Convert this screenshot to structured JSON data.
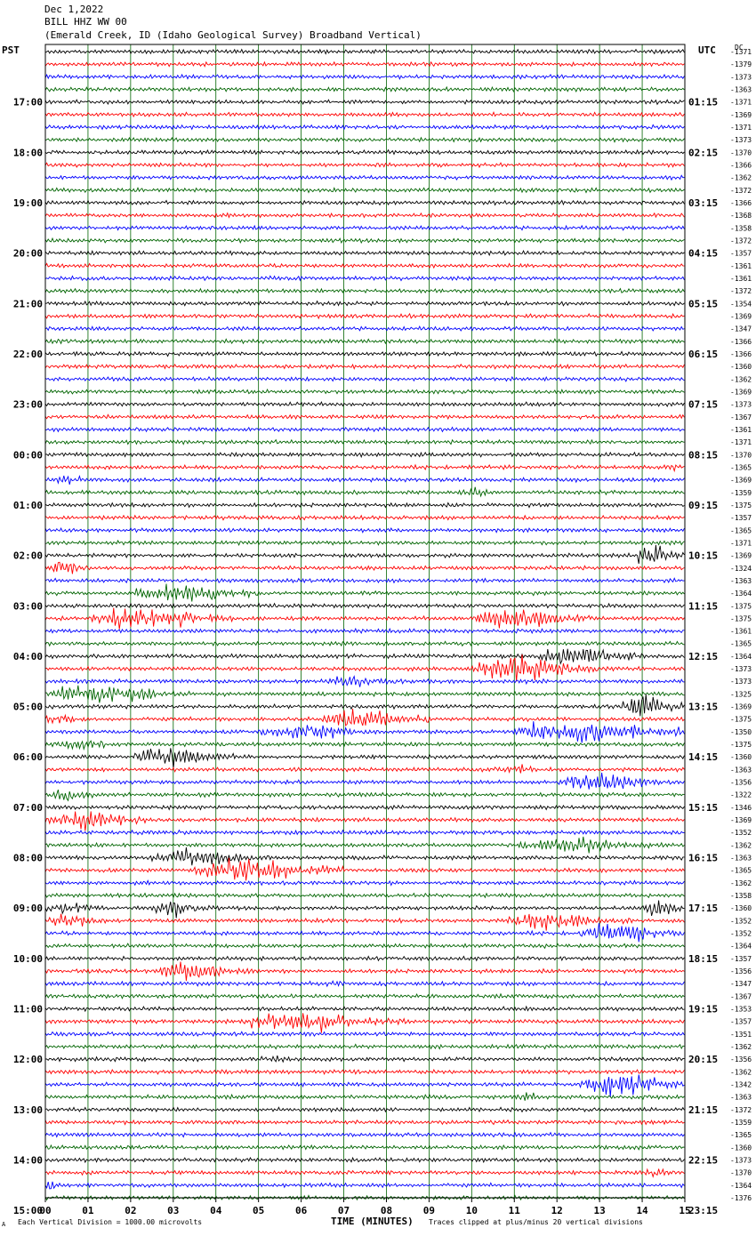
{
  "header": {
    "line1": "Dec 1,2022",
    "line2": "BILL HHZ WW 00",
    "line3": "(Emerald Creek, ID (Idaho Geological Survey) Broadband Vertical)"
  },
  "corners": {
    "left": "PST",
    "right": "UTC",
    "dc": "DC"
  },
  "footer": {
    "left": "Each Vertical Division = 1000.00 microvolts",
    "center": "TIME (MINUTES)",
    "right": "Traces clipped at plus/minus 20 vertical divisions",
    "scale_mark": "A"
  },
  "colors": {
    "trace_cycle": [
      "#000000",
      "#ff0000",
      "#0000ff",
      "#006400"
    ],
    "grid": "#006400"
  },
  "chart_data": {
    "type": "line",
    "title": "BILL HHZ WW 00",
    "xlabel": "TIME (MINUTES)",
    "xlim": [
      0,
      15
    ],
    "x_ticks": [
      "00",
      "01",
      "02",
      "03",
      "04",
      "05",
      "06",
      "07",
      "08",
      "09",
      "10",
      "11",
      "12",
      "13",
      "14",
      "15"
    ],
    "left_time_labels": [
      {
        "row": 4,
        "label": "17:00"
      },
      {
        "row": 8,
        "label": "18:00"
      },
      {
        "row": 12,
        "label": "19:00"
      },
      {
        "row": 16,
        "label": "20:00"
      },
      {
        "row": 20,
        "label": "21:00"
      },
      {
        "row": 24,
        "label": "22:00"
      },
      {
        "row": 28,
        "label": "23:00"
      },
      {
        "row": 32,
        "label": "00:00"
      },
      {
        "row": 36,
        "label": "01:00"
      },
      {
        "row": 40,
        "label": "02:00"
      },
      {
        "row": 44,
        "label": "03:00"
      },
      {
        "row": 48,
        "label": "04:00"
      },
      {
        "row": 52,
        "label": "05:00"
      },
      {
        "row": 56,
        "label": "06:00"
      },
      {
        "row": 60,
        "label": "07:00"
      },
      {
        "row": 64,
        "label": "08:00"
      },
      {
        "row": 68,
        "label": "09:00"
      },
      {
        "row": 72,
        "label": "10:00"
      },
      {
        "row": 76,
        "label": "11:00"
      },
      {
        "row": 80,
        "label": "12:00"
      },
      {
        "row": 84,
        "label": "13:00"
      },
      {
        "row": 88,
        "label": "14:00"
      },
      {
        "row": 92,
        "label": "15:00"
      }
    ],
    "right_time_labels": [
      {
        "row": 4,
        "label": "01:15"
      },
      {
        "row": 8,
        "label": "02:15"
      },
      {
        "row": 12,
        "label": "03:15"
      },
      {
        "row": 16,
        "label": "04:15"
      },
      {
        "row": 20,
        "label": "05:15"
      },
      {
        "row": 24,
        "label": "06:15"
      },
      {
        "row": 28,
        "label": "07:15"
      },
      {
        "row": 32,
        "label": "08:15"
      },
      {
        "row": 36,
        "label": "09:15"
      },
      {
        "row": 40,
        "label": "10:15"
      },
      {
        "row": 44,
        "label": "11:15"
      },
      {
        "row": 48,
        "label": "12:15"
      },
      {
        "row": 52,
        "label": "13:15"
      },
      {
        "row": 56,
        "label": "14:15"
      },
      {
        "row": 60,
        "label": "15:15"
      },
      {
        "row": 64,
        "label": "16:15"
      },
      {
        "row": 68,
        "label": "17:15"
      },
      {
        "row": 72,
        "label": "18:15"
      },
      {
        "row": 76,
        "label": "19:15"
      },
      {
        "row": 80,
        "label": "20:15"
      },
      {
        "row": 84,
        "label": "21:15"
      },
      {
        "row": 88,
        "label": "22:15"
      },
      {
        "row": 92,
        "label": "23:15"
      }
    ],
    "trace_dc_offsets": [
      "-1371",
      "-1379",
      "-1373",
      "-1363",
      "-1371",
      "-1369",
      "-1371",
      "-1373",
      "-1370",
      "-1366",
      "-1362",
      "-1372",
      "-1366",
      "-1368",
      "-1358",
      "-1372",
      "-1357",
      "-1361",
      "-1361",
      "-1372",
      "-1354",
      "-1369",
      "-1347",
      "-1366",
      "-1366",
      "-1360",
      "-1362",
      "-1369",
      "-1373",
      "-1367",
      "-1361",
      "-1371",
      "-1370",
      "-1365",
      "-1369",
      "-1359",
      "-1375",
      "-1357",
      "-1365",
      "-1371",
      "-1369",
      "-1324",
      "-1363",
      "-1364",
      "-1375",
      "-1375",
      "-1361",
      "-1365",
      "-1364",
      "-1373",
      "-1373",
      "-1325",
      "-1369",
      "-1375",
      "-1350",
      "-1375",
      "-1360",
      "-1363",
      "-1356",
      "-1322",
      "-1346",
      "-1369",
      "-1352",
      "-1362",
      "-1363",
      "-1365",
      "-1362",
      "-1358",
      "-1360",
      "-1352",
      "-1352",
      "-1364",
      "-1357",
      "-1356",
      "-1347",
      "-1367",
      "-1353",
      "-1357",
      "-1351",
      "-1362",
      "-1356",
      "-1362",
      "-1342",
      "-1363",
      "-1372",
      "-1359",
      "-1365",
      "-1360",
      "-1373",
      "-1370",
      "-1364",
      "-1376"
    ],
    "events": [
      {
        "row": 34,
        "start_min": 0.0,
        "end_min": 1.5,
        "amplitude": 6
      },
      {
        "row": 33,
        "start_min": 14.5,
        "end_min": 15.0,
        "amplitude": 7
      },
      {
        "row": 35,
        "start_min": 9.5,
        "end_min": 11.0,
        "amplitude": 6
      },
      {
        "row": 40,
        "start_min": 13.8,
        "end_min": 15.0,
        "amplitude": 14
      },
      {
        "row": 41,
        "start_min": 0.0,
        "end_min": 1.0,
        "amplitude": 12
      },
      {
        "row": 43,
        "start_min": 2.0,
        "end_min": 5.0,
        "amplitude": 12
      },
      {
        "row": 45,
        "start_min": 1.0,
        "end_min": 4.5,
        "amplitude": 14
      },
      {
        "row": 45,
        "start_min": 10.0,
        "end_min": 13.0,
        "amplitude": 14
      },
      {
        "row": 48,
        "start_min": 11.5,
        "end_min": 14.0,
        "amplitude": 14
      },
      {
        "row": 49,
        "start_min": 10.0,
        "end_min": 13.0,
        "amplitude": 16
      },
      {
        "row": 50,
        "start_min": 6.5,
        "end_min": 8.5,
        "amplitude": 8
      },
      {
        "row": 51,
        "start_min": 0.0,
        "end_min": 3.5,
        "amplitude": 12
      },
      {
        "row": 52,
        "start_min": 13.5,
        "end_min": 15.0,
        "amplitude": 16
      },
      {
        "row": 53,
        "start_min": 0.0,
        "end_min": 1.0,
        "amplitude": 8
      },
      {
        "row": 53,
        "start_min": 6.5,
        "end_min": 9.0,
        "amplitude": 14
      },
      {
        "row": 54,
        "start_min": 5.0,
        "end_min": 8.0,
        "amplitude": 10
      },
      {
        "row": 54,
        "start_min": 11.0,
        "end_min": 15.0,
        "amplitude": 16
      },
      {
        "row": 55,
        "start_min": 0.0,
        "end_min": 2.0,
        "amplitude": 8
      },
      {
        "row": 56,
        "start_min": 2.0,
        "end_min": 4.5,
        "amplitude": 14
      },
      {
        "row": 57,
        "start_min": 10.5,
        "end_min": 12.0,
        "amplitude": 6
      },
      {
        "row": 58,
        "start_min": 12.0,
        "end_min": 15.0,
        "amplitude": 12
      },
      {
        "row": 59,
        "start_min": 0.0,
        "end_min": 1.2,
        "amplitude": 10
      },
      {
        "row": 61,
        "start_min": 0.0,
        "end_min": 2.5,
        "amplitude": 12
      },
      {
        "row": 63,
        "start_min": 11.0,
        "end_min": 14.5,
        "amplitude": 10
      },
      {
        "row": 64,
        "start_min": 2.5,
        "end_min": 5.5,
        "amplitude": 12
      },
      {
        "row": 65,
        "start_min": 3.5,
        "end_min": 7.0,
        "amplitude": 14
      },
      {
        "row": 68,
        "start_min": 0.0,
        "end_min": 1.5,
        "amplitude": 10
      },
      {
        "row": 68,
        "start_min": 2.5,
        "end_min": 4.0,
        "amplitude": 10
      },
      {
        "row": 68,
        "start_min": 14.0,
        "end_min": 15.0,
        "amplitude": 16
      },
      {
        "row": 69,
        "start_min": 0.0,
        "end_min": 1.5,
        "amplitude": 10
      },
      {
        "row": 69,
        "start_min": 10.5,
        "end_min": 14.0,
        "amplitude": 10
      },
      {
        "row": 70,
        "start_min": 12.5,
        "end_min": 15.0,
        "amplitude": 14
      },
      {
        "row": 73,
        "start_min": 2.5,
        "end_min": 5.0,
        "amplitude": 12
      },
      {
        "row": 74,
        "start_min": 6.5,
        "end_min": 7.5,
        "amplitude": 5
      },
      {
        "row": 77,
        "start_min": 4.5,
        "end_min": 8.5,
        "amplitude": 12
      },
      {
        "row": 80,
        "start_min": 5.0,
        "end_min": 6.0,
        "amplitude": 6
      },
      {
        "row": 82,
        "start_min": 12.5,
        "end_min": 15.0,
        "amplitude": 16
      },
      {
        "row": 83,
        "start_min": 11.0,
        "end_min": 12.0,
        "amplitude": 5
      },
      {
        "row": 89,
        "start_min": 14.0,
        "end_min": 15.0,
        "amplitude": 6
      },
      {
        "row": 90,
        "start_min": 0.0,
        "end_min": 0.3,
        "amplitude": 10
      },
      {
        "row": 92,
        "start_min": 12.0,
        "end_min": 13.5,
        "amplitude": 8
      },
      {
        "row": 94,
        "start_min": 0.0,
        "end_min": 0.2,
        "amplitude": 8
      }
    ]
  }
}
